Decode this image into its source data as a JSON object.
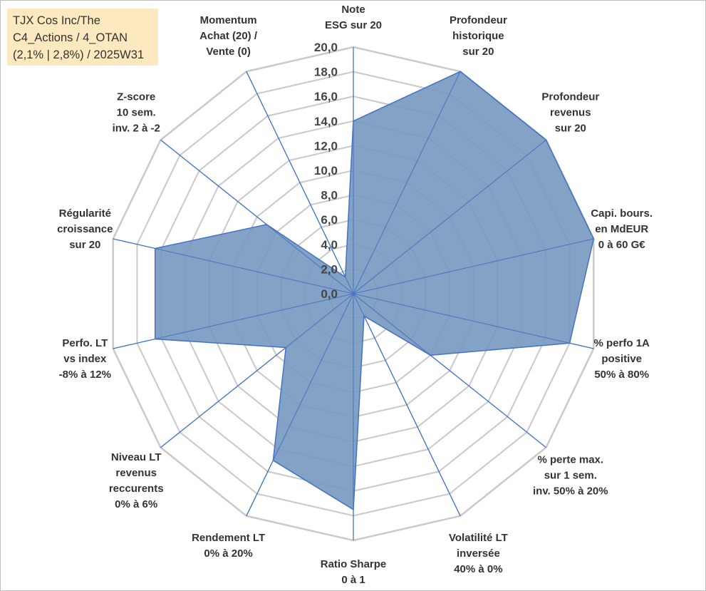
{
  "title_box": {
    "line1": "TJX Cos Inc/The",
    "line2": "C4_Actions / 4_OTAN",
    "line3": "(2,1% | 2,8%) / 2025W31"
  },
  "chart_data": {
    "type": "radar",
    "rmin": 0,
    "rmax": 20,
    "tick_step": 2,
    "tick_labels": [
      "0,0",
      "2,0",
      "4,0",
      "6,0",
      "8,0",
      "10,0",
      "12,0",
      "14,0",
      "16,0",
      "18,0",
      "20,0"
    ],
    "grid": true,
    "axes": [
      [
        "Note",
        "ESG sur 20"
      ],
      [
        "Profondeur",
        "historique",
        "sur 20"
      ],
      [
        "Profondeur",
        "revenus",
        "sur 20"
      ],
      [
        "Capi. bours.",
        "en MdEUR",
        "0 à 60 G€"
      ],
      [
        "% perfo 1A",
        "positive",
        "50% à 80%"
      ],
      [
        "% perte max.",
        "sur 1 sem.",
        "inv. 50% à 20%"
      ],
      [
        "Volatilité LT",
        "inversée",
        "40% à 0%"
      ],
      [
        "Ratio Sharpe",
        "0 à 1"
      ],
      [
        "Rendement LT",
        "0% à 20%"
      ],
      [
        "Niveau LT",
        "revenus",
        "reccurents",
        "0% à 6%"
      ],
      [
        "Perfo. LT",
        "vs index",
        "-8% à 12%"
      ],
      [
        "Régularité",
        "croissance",
        "sur 20"
      ],
      [
        "Z-score",
        "10 sem.",
        "inv. 2 à -2"
      ],
      [
        "Momentum",
        "Achat (20) /",
        "Vente (0)"
      ]
    ],
    "series": [
      {
        "values": [
          14,
          20,
          20,
          20,
          18,
          8,
          2,
          17.5,
          15,
          7,
          16.5,
          16.5,
          9,
          1.5
        ]
      }
    ],
    "colors": {
      "fill": "#7698c0",
      "stroke": "#4472c4",
      "spokes": "#4472c4",
      "grid": "#c9c9c9"
    }
  }
}
